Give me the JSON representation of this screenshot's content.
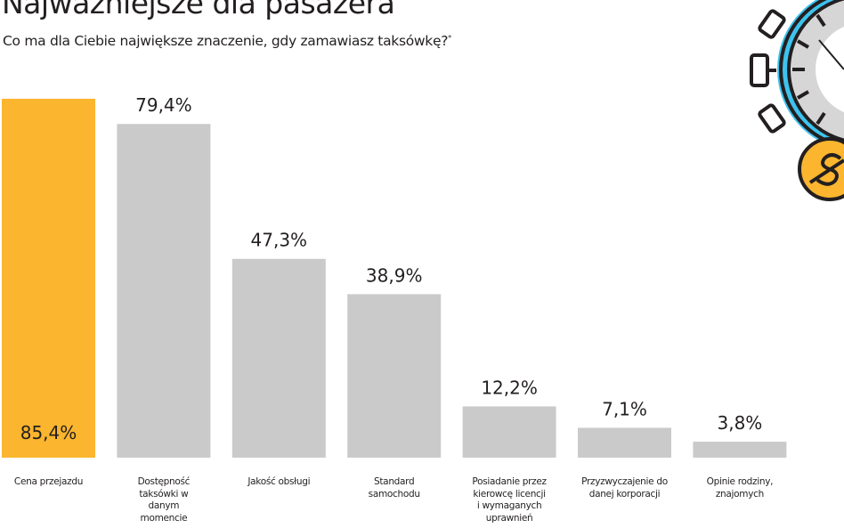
{
  "title": "Najważniejsze dla pasażera",
  "subtitle": "Co ma dla Ciebie największe znaczenie, gdy zamawiasz taksówkę?",
  "subtitle_mark": "*",
  "colors": {
    "highlight": "#FBB52E",
    "bar": "#CACACA",
    "accent_blue": "#3DC3EE",
    "text": "#231F20"
  },
  "icons": [
    "stopwatch-icon",
    "dollar-coin-icon"
  ],
  "chart_data": {
    "type": "bar",
    "title": "Najważniejsze dla pasażera",
    "categories": [
      "Cena przejazdu",
      "Dostępność taksówki w danym momencie",
      "Jakość obsługi",
      "Standard samochodu",
      "Posiadanie przez kierowcę licencji i wymaganych uprawnień",
      "Przyzwyczajenie do danej korporacji",
      "Opinie rodziny, znajomych"
    ],
    "values": [
      85.4,
      79.4,
      47.3,
      38.9,
      12.2,
      7.1,
      3.8
    ],
    "labels": [
      "85,4%",
      "79,4%",
      "47,3%",
      "38,9%",
      "12,2%",
      "7,1%",
      "3,8%"
    ],
    "highlighted_index": 0,
    "unit": "%",
    "grid": false,
    "legend": "none"
  }
}
